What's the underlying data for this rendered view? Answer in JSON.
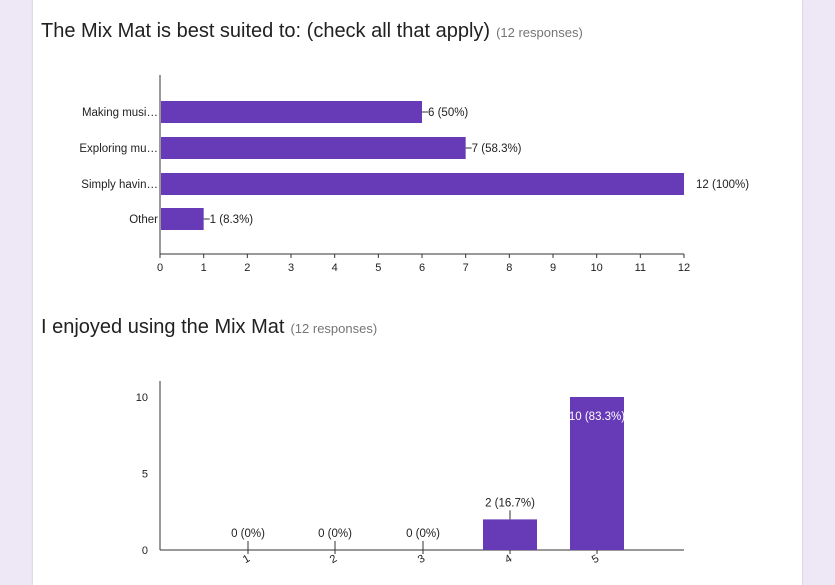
{
  "colors": {
    "bar": "#673ab7",
    "axis": "#333333",
    "page_bg": "#ede7f6",
    "card_bg": "#ffffff"
  },
  "chart_data": [
    {
      "type": "bar",
      "orientation": "horizontal",
      "title": "The Mix Mat is best suited to: (check all that apply)",
      "responses": "(12 responses)",
      "categories": [
        "Making musi…",
        "Exploring mu…",
        "Simply havin…",
        "Other"
      ],
      "values": [
        6,
        7,
        12,
        1
      ],
      "labels": [
        "6 (50%)",
        "7 (58.3%)",
        "12 (100%)",
        "1 (8.3%)"
      ],
      "xlim": [
        0,
        12
      ],
      "xticks": [
        "0",
        "1",
        "2",
        "3",
        "4",
        "5",
        "6",
        "7",
        "8",
        "9",
        "10",
        "11",
        "12"
      ],
      "grid": false
    },
    {
      "type": "bar",
      "orientation": "vertical",
      "title": "I enjoyed using the Mix Mat",
      "responses": "(12 responses)",
      "categories": [
        "1",
        "2",
        "3",
        "4",
        "5"
      ],
      "values": [
        0,
        0,
        0,
        2,
        10
      ],
      "labels": [
        "0 (0%)",
        "0 (0%)",
        "0 (0%)",
        "2 (16.7%)",
        "10 (83.3%)"
      ],
      "ylim": [
        0,
        10
      ],
      "yticks": [
        "0",
        "5",
        "10"
      ],
      "grid": false
    }
  ]
}
